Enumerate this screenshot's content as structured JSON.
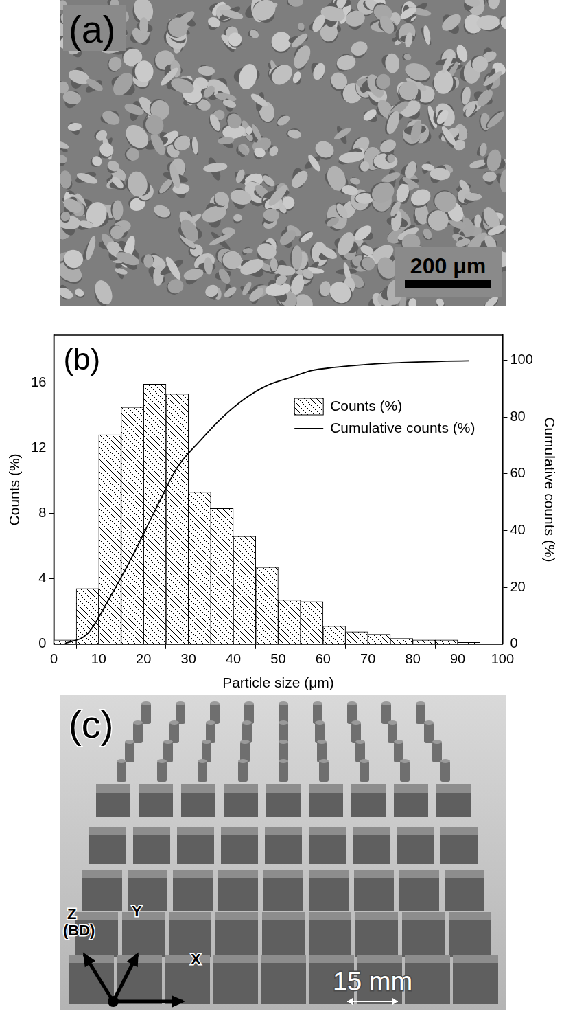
{
  "panels": [
    {
      "label": "(a)",
      "scale_bar": "200 μm"
    },
    {
      "label": "(c)",
      "scale_bar": "15 mm",
      "axes": [
        "Z",
        "(BD)",
        "Y",
        "X"
      ]
    }
  ],
  "chart_data": {
    "type": "histogram",
    "annotations": [
      "(b)"
    ],
    "x_label": "Particle size (μm)",
    "y_label": "Counts (%)",
    "y2_label": "Cumulative counts (%)",
    "bins": [
      0,
      5,
      10,
      15,
      20,
      25,
      30,
      35,
      40,
      45,
      50,
      55,
      60,
      65,
      70,
      75,
      80,
      85,
      90,
      95
    ],
    "series": [
      {
        "name": "Counts (%)",
        "type": "bar",
        "color": "#000000",
        "values": [
          0.25,
          3.4,
          12.8,
          14.5,
          15.9,
          15.3,
          9.3,
          8.3,
          6.6,
          4.7,
          2.7,
          2.6,
          1.1,
          0.75,
          0.6,
          0.35,
          0.25,
          0.25,
          0.1
        ]
      },
      {
        "name": "Cumulative counts (%)",
        "type": "line",
        "axis": "y2",
        "color": "#000000",
        "line_style": "solid",
        "x": [
          2.5,
          7.5,
          12.5,
          17.5,
          22.5,
          27.5,
          32.5,
          37.5,
          42.5,
          47.5,
          52.5,
          57.5,
          62.5,
          67.5,
          72.5,
          77.5,
          82.5,
          87.5,
          92.5
        ],
        "values": [
          0.25,
          3.65,
          16.45,
          30.95,
          46.85,
          62.15,
          71.45,
          79.75,
          86.35,
          91.05,
          93.75,
          96.35,
          97.45,
          98.2,
          98.8,
          99.15,
          99.4,
          99.65,
          99.75
        ]
      }
    ],
    "xlim": [
      0,
      100
    ],
    "xticks": [
      0,
      10,
      20,
      30,
      40,
      50,
      60,
      70,
      80,
      90,
      100
    ],
    "ylim": [
      0,
      18.9
    ],
    "yticks": [
      0,
      4,
      8,
      12,
      16
    ],
    "y2lim": [
      0,
      108.8
    ],
    "y2ticks": [
      0,
      20,
      40,
      60,
      80,
      100
    ],
    "grid": false,
    "legend": "upper right"
  }
}
